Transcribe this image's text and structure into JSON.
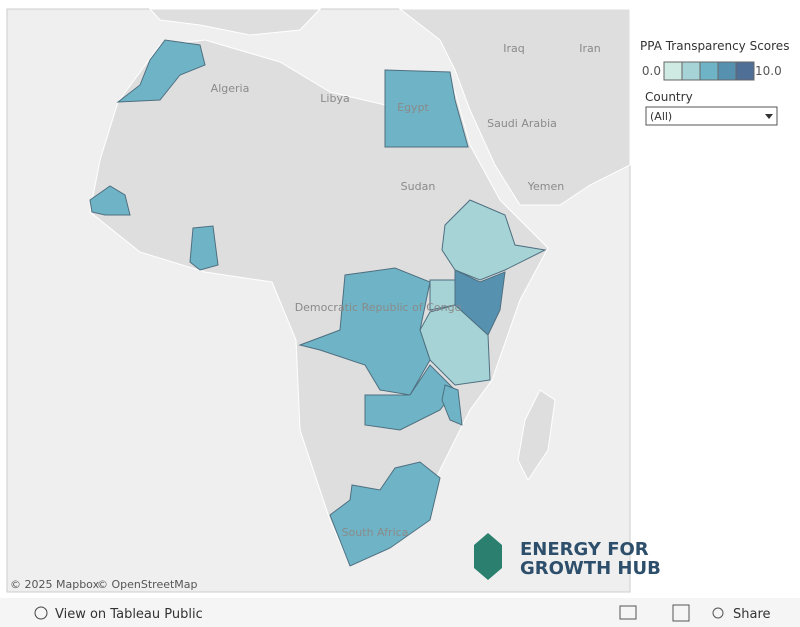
{
  "map": {
    "labels": [
      "Iraq",
      "Iran",
      "Algeria",
      "Libya",
      "Egypt",
      "Saudi Arabia",
      "Sudan",
      "Yemen",
      "Democratic Republic of Congo",
      "South Africa"
    ],
    "attribution": [
      "© 2025 Mapbox",
      "© OpenStreetMap"
    ]
  },
  "logo": {
    "line1": "ENERGY FOR",
    "line2": "GROWTH HUB"
  },
  "legend": {
    "title": "PPA Transparency Scores",
    "min_label": "0.0",
    "max_label": "10.0",
    "colors": [
      "#cfe9e3",
      "#a6d3d6",
      "#6fb4c6",
      "#5691b0",
      "#4f6f96"
    ]
  },
  "filter": {
    "title": "Country",
    "value": "(All)"
  },
  "toolbar": {
    "view": "View on Tableau Public",
    "share": "Share"
  }
}
